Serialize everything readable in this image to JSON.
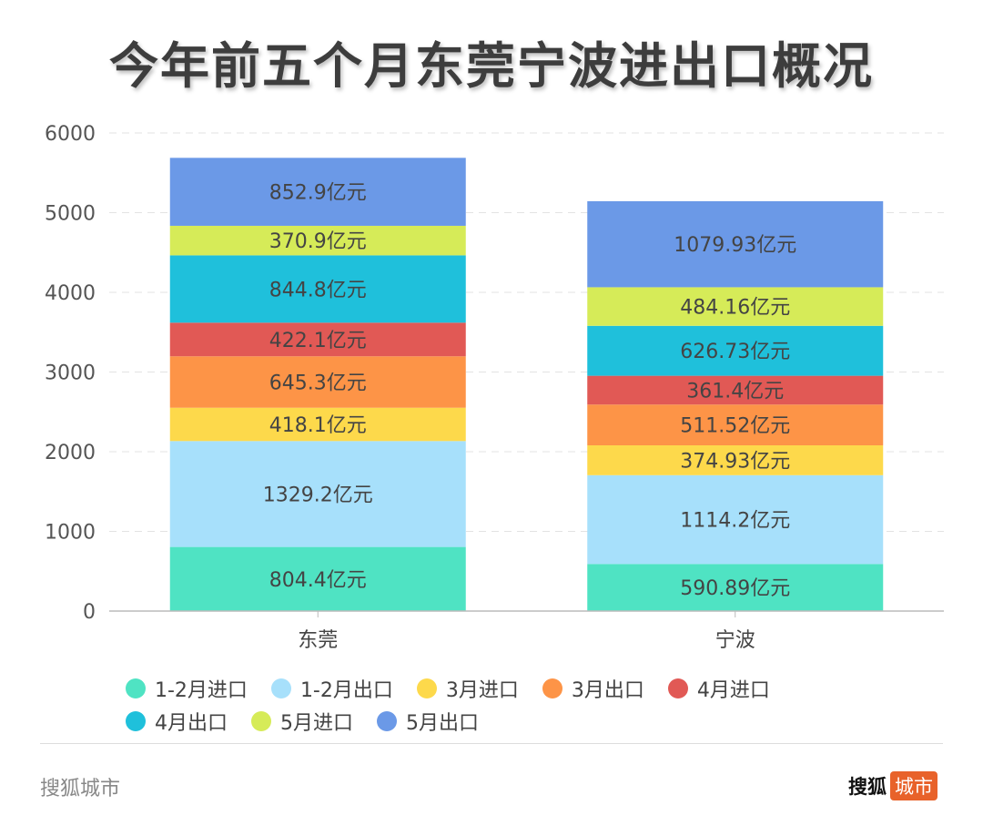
{
  "chart_data": {
    "type": "bar",
    "stacked": true,
    "title": "今年前五个月东莞宁波进出口概况",
    "categories": [
      "东莞",
      "宁波"
    ],
    "ylim": [
      0,
      6000
    ],
    "yticks": [
      0,
      1000,
      2000,
      3000,
      4000,
      5000,
      6000
    ],
    "grid": true,
    "legend_position": "bottom",
    "unit_suffix": "亿元",
    "series": [
      {
        "name": "1-2月进口",
        "color": "#4fe3c3",
        "values": [
          804.4,
          590.89
        ],
        "labels": [
          "804.4",
          "590.89"
        ]
      },
      {
        "name": "1-2月出口",
        "color": "#a7e0fb",
        "values": [
          1329.2,
          1114.2
        ],
        "labels": [
          "1329.2",
          "1114.2"
        ]
      },
      {
        "name": "3月进口",
        "color": "#fdd94b",
        "values": [
          418.1,
          374.93
        ],
        "labels": [
          "418.1",
          "374.93"
        ]
      },
      {
        "name": "3月出口",
        "color": "#fd9447",
        "values": [
          645.3,
          511.52
        ],
        "labels": [
          "645.3",
          "511.52"
        ]
      },
      {
        "name": "4月进口",
        "color": "#e15955",
        "values": [
          422.1,
          361.4
        ],
        "labels": [
          "422.1",
          "361.4"
        ]
      },
      {
        "name": "4月出口",
        "color": "#1fc0db",
        "values": [
          844.8,
          626.73
        ],
        "labels": [
          "844.8",
          "626.73"
        ]
      },
      {
        "name": "5月进口",
        "color": "#d6eb58",
        "values": [
          370.9,
          484.16
        ],
        "labels": [
          "370.9",
          "484.16"
        ]
      },
      {
        "name": "5月出口",
        "color": "#6b99e7",
        "values": [
          852.9,
          1079.93
        ],
        "labels": [
          "852.9",
          "1079.93"
        ]
      }
    ]
  },
  "footer": {
    "source": "搜狐城市",
    "logo_text": "搜狐",
    "logo_badge": "城市"
  }
}
